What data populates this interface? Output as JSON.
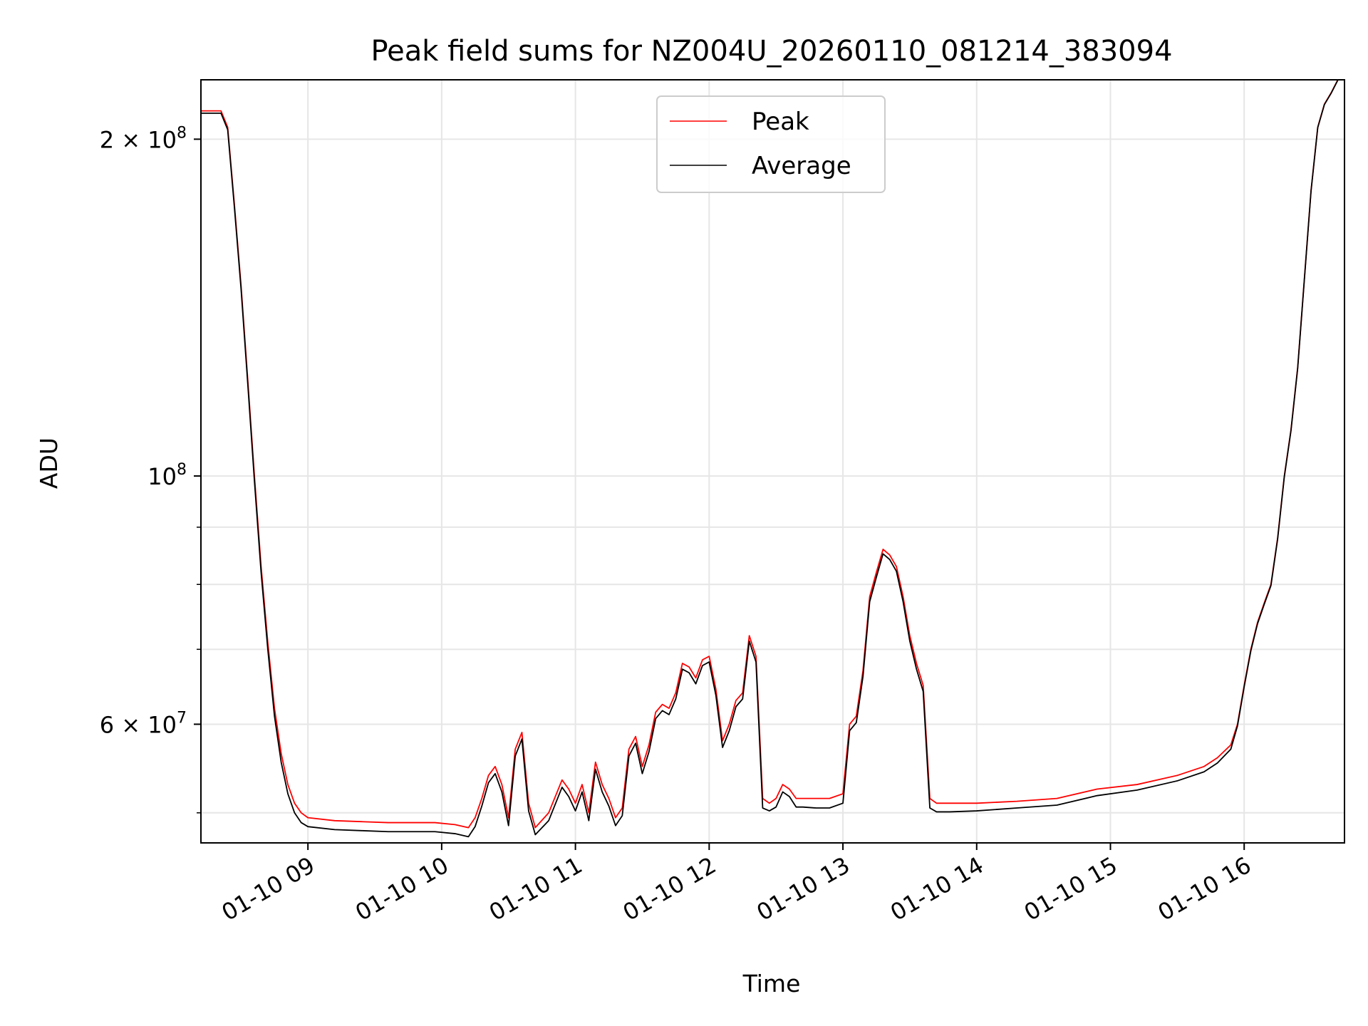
{
  "chart_data": {
    "type": "line",
    "title": "Peak field sums for NZ004U_20260110_081214_383094",
    "xlabel": "Time",
    "ylabel": "ADU",
    "x_unit": "hour of 2026-01-10",
    "xlim": [
      8.2,
      16.75
    ],
    "ylim": [
      47000000,
      226000000
    ],
    "yscale": "log",
    "grid": true,
    "legend_position": "top-center",
    "x_ticks": [
      {
        "value": 9,
        "label": "01-10 09"
      },
      {
        "value": 10,
        "label": "01-10 10"
      },
      {
        "value": 11,
        "label": "01-10 11"
      },
      {
        "value": 12,
        "label": "01-10 12"
      },
      {
        "value": 13,
        "label": "01-10 13"
      },
      {
        "value": 14,
        "label": "01-10 14"
      },
      {
        "value": 15,
        "label": "01-10 15"
      },
      {
        "value": 16,
        "label": "01-10 16"
      }
    ],
    "y_ticks": [
      {
        "value": 200000000,
        "base": "2 × 10",
        "exp": "8"
      },
      {
        "value": 100000000,
        "base": "10",
        "exp": "8"
      },
      {
        "value": 60000000,
        "base": "6 × 10",
        "exp": "7"
      }
    ],
    "y_minor_ticks": [
      50000000,
      70000000,
      80000000,
      90000000
    ],
    "series": [
      {
        "name": "Peak",
        "color": "#ff0000",
        "x": [
          8.2,
          8.3,
          8.35,
          8.4,
          8.45,
          8.5,
          8.55,
          8.6,
          8.65,
          8.7,
          8.75,
          8.8,
          8.85,
          8.9,
          8.95,
          9.0,
          9.2,
          9.4,
          9.6,
          9.8,
          9.95,
          10.1,
          10.2,
          10.25,
          10.3,
          10.35,
          10.4,
          10.45,
          10.5,
          10.55,
          10.6,
          10.65,
          10.7,
          10.8,
          10.9,
          10.95,
          11.0,
          11.05,
          11.1,
          11.15,
          11.2,
          11.25,
          11.3,
          11.35,
          11.4,
          11.45,
          11.5,
          11.55,
          11.6,
          11.65,
          11.7,
          11.75,
          11.8,
          11.85,
          11.9,
          11.95,
          12.0,
          12.05,
          12.1,
          12.15,
          12.2,
          12.25,
          12.3,
          12.35,
          12.4,
          12.45,
          12.5,
          12.55,
          12.6,
          12.65,
          12.7,
          12.8,
          12.9,
          13.0,
          13.05,
          13.1,
          13.15,
          13.2,
          13.25,
          13.3,
          13.35,
          13.4,
          13.45,
          13.5,
          13.55,
          13.6,
          13.65,
          13.7,
          13.8,
          14.0,
          14.3,
          14.6,
          14.9,
          15.2,
          15.5,
          15.7,
          15.8,
          15.9,
          15.95,
          16.0,
          16.05,
          16.1,
          16.15,
          16.2,
          16.25,
          16.3,
          16.35,
          16.4,
          16.45,
          16.5,
          16.55,
          16.6,
          16.65,
          16.7,
          16.75
        ],
        "y": [
          212000000,
          212000000,
          212000000,
          205000000,
          175000000,
          148000000,
          122000000,
          100000000,
          83000000,
          71000000,
          62000000,
          56500000,
          53000000,
          51000000,
          50000000,
          49500000,
          49200000,
          49100000,
          49000000,
          49000000,
          49000000,
          48800000,
          48500000,
          49500000,
          51500000,
          54000000,
          55000000,
          53000000,
          49500000,
          57000000,
          59000000,
          51000000,
          48500000,
          50000000,
          53500000,
          52500000,
          51000000,
          53000000,
          50000000,
          55500000,
          53000000,
          51500000,
          49500000,
          50500000,
          57000000,
          58500000,
          55000000,
          57500000,
          61500000,
          62500000,
          62000000,
          64000000,
          68000000,
          67500000,
          66000000,
          68500000,
          69000000,
          64500000,
          58000000,
          60000000,
          63000000,
          64000000,
          72000000,
          69000000,
          51500000,
          51000000,
          51500000,
          53000000,
          52500000,
          51500000,
          51500000,
          51500000,
          51500000,
          52000000,
          60000000,
          61000000,
          67000000,
          78000000,
          82000000,
          86000000,
          85000000,
          83000000,
          78000000,
          72000000,
          68000000,
          65000000,
          51500000,
          51000000,
          51000000,
          51000000,
          51200000,
          51500000,
          52500000,
          53000000,
          54000000,
          55000000,
          56000000,
          57500000,
          60000000,
          65000000,
          70000000,
          74000000,
          77000000,
          80000000,
          88000000,
          100000000,
          110000000,
          125000000,
          150000000,
          180000000,
          205000000,
          215000000,
          220000000,
          226000000,
          228000000
        ]
      },
      {
        "name": "Average",
        "color": "#000000",
        "x": [
          8.2,
          8.3,
          8.35,
          8.4,
          8.45,
          8.5,
          8.55,
          8.6,
          8.65,
          8.7,
          8.75,
          8.8,
          8.85,
          8.9,
          8.95,
          9.0,
          9.2,
          9.4,
          9.6,
          9.8,
          9.95,
          10.1,
          10.2,
          10.25,
          10.3,
          10.35,
          10.4,
          10.45,
          10.5,
          10.55,
          10.6,
          10.65,
          10.7,
          10.8,
          10.9,
          10.95,
          11.0,
          11.05,
          11.1,
          11.15,
          11.2,
          11.25,
          11.3,
          11.35,
          11.4,
          11.45,
          11.5,
          11.55,
          11.6,
          11.65,
          11.7,
          11.75,
          11.8,
          11.85,
          11.9,
          11.95,
          12.0,
          12.05,
          12.1,
          12.15,
          12.2,
          12.25,
          12.3,
          12.35,
          12.4,
          12.45,
          12.5,
          12.55,
          12.6,
          12.65,
          12.7,
          12.8,
          12.9,
          13.0,
          13.05,
          13.1,
          13.15,
          13.2,
          13.25,
          13.3,
          13.35,
          13.4,
          13.45,
          13.5,
          13.55,
          13.6,
          13.65,
          13.7,
          13.8,
          14.0,
          14.3,
          14.6,
          14.9,
          15.2,
          15.5,
          15.7,
          15.8,
          15.9,
          15.95,
          16.0,
          16.05,
          16.1,
          16.15,
          16.2,
          16.25,
          16.3,
          16.35,
          16.4,
          16.45,
          16.5,
          16.55,
          16.6,
          16.65,
          16.7,
          16.75
        ],
        "y": [
          211000000,
          211000000,
          211000000,
          204000000,
          174000000,
          147000000,
          121000000,
          99000000,
          82000000,
          70000000,
          61000000,
          55500000,
          52000000,
          50000000,
          49000000,
          48600000,
          48300000,
          48200000,
          48100000,
          48100000,
          48100000,
          47900000,
          47600000,
          48600000,
          50700000,
          53200000,
          54200000,
          52200000,
          48700000,
          56200000,
          58200000,
          50200000,
          47800000,
          49200000,
          52700000,
          51700000,
          50200000,
          52200000,
          49200000,
          54700000,
          52200000,
          50700000,
          48700000,
          49700000,
          56200000,
          57700000,
          54200000,
          56700000,
          60700000,
          61700000,
          61200000,
          63200000,
          67200000,
          66700000,
          65200000,
          67700000,
          68200000,
          63700000,
          57200000,
          59200000,
          62200000,
          63200000,
          71200000,
          68200000,
          50500000,
          50200000,
          50600000,
          52200000,
          51700000,
          50600000,
          50600000,
          50500000,
          50500000,
          51000000,
          59200000,
          60200000,
          66200000,
          77200000,
          81200000,
          85200000,
          84200000,
          82200000,
          77200000,
          71200000,
          67200000,
          64200000,
          50500000,
          50100000,
          50100000,
          50200000,
          50500000,
          50800000,
          51800000,
          52400000,
          53400000,
          54400000,
          55400000,
          57000000,
          59800000,
          64800000,
          69800000,
          73800000,
          76800000,
          79800000,
          87800000,
          99800000,
          109800000,
          124800000,
          149800000,
          179800000,
          204800000,
          214800000,
          219800000,
          225800000,
          227800000
        ]
      }
    ]
  }
}
